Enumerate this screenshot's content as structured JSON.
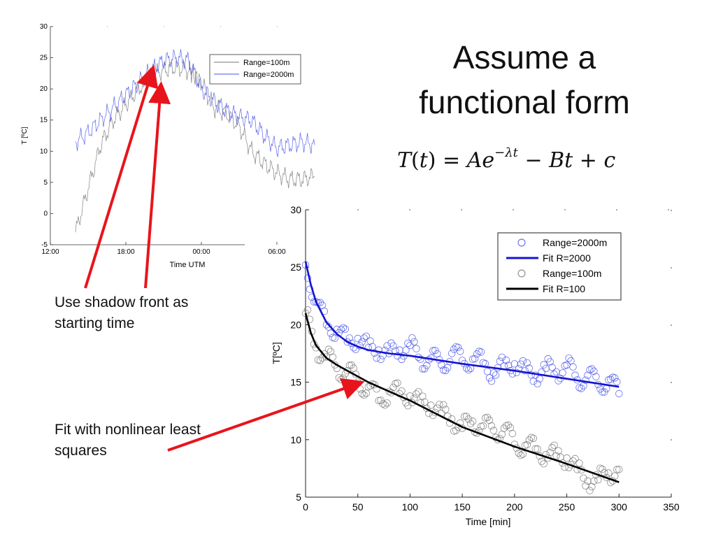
{
  "slide": {
    "title_line1": "Assume a",
    "title_line2": "functional form",
    "equation": {
      "T": "T",
      "t": "t",
      "A": "A",
      "e": "e",
      "exponent": "−λt",
      "minus": "−",
      "Bt": "Bt",
      "plus": "+",
      "c": "c"
    },
    "note_shadow_front": "Use shadow front as starting time",
    "note_fit": "Fit with nonlinear least squares"
  },
  "colors": {
    "range2000": "#4a55e8",
    "range100": "#777777",
    "fit2000": "#1414d2",
    "fit100": "#000000",
    "arrow": "#e8141b"
  },
  "chart_data": [
    {
      "type": "line",
      "title": "",
      "xlabel": "Time UTM",
      "ylabel": "T [ºC]",
      "x_tick_labels": [
        "12:00",
        "18:00",
        "00:00",
        "06:00"
      ],
      "y_ticks": [
        -5,
        0,
        5,
        10,
        15,
        20,
        25,
        30
      ],
      "ylim": [
        -5,
        30
      ],
      "legend_position": "top-right",
      "series": [
        {
          "name": "Range=100m",
          "color": "#777777",
          "x": [
            "14:00",
            "15:00",
            "16:00",
            "17:00",
            "18:00",
            "19:00",
            "20:00",
            "21:00",
            "22:00",
            "23:00",
            "23:30",
            "00:00",
            "01:00",
            "02:00",
            "03:00",
            "04:00",
            "05:00",
            "06:00",
            "07:00",
            "08:00",
            "09:00"
          ],
          "values": [
            -3,
            4,
            11,
            15,
            17.5,
            20,
            22,
            23,
            23.5,
            23,
            22,
            21,
            17,
            16,
            14,
            10,
            8,
            6.5,
            5.5,
            5.5,
            6
          ]
        },
        {
          "name": "Range=2000m",
          "color": "#4a55e8",
          "x": [
            "14:00",
            "15:00",
            "16:00",
            "17:00",
            "18:00",
            "19:00",
            "20:00",
            "21:00",
            "22:00",
            "23:00",
            "00:00",
            "01:00",
            "02:00",
            "03:00",
            "04:00",
            "05:00",
            "06:00",
            "07:00",
            "08:00",
            "09:00"
          ],
          "values": [
            11.5,
            13,
            15,
            17,
            19,
            21,
            23,
            24.5,
            25,
            24.5,
            20,
            18,
            16.5,
            15.5,
            15,
            12.5,
            10.5,
            11,
            11.5,
            11
          ]
        }
      ]
    },
    {
      "type": "scatter",
      "title": "",
      "xlabel": "Time [min]",
      "ylabel": "T[ºC]",
      "x_ticks": [
        0,
        50,
        100,
        150,
        200,
        250,
        300,
        350
      ],
      "y_ticks": [
        5,
        10,
        15,
        20,
        25,
        30
      ],
      "xlim": [
        0,
        350
      ],
      "ylim": [
        5,
        30
      ],
      "legend_position": "top-right",
      "series": [
        {
          "name": "Range=2000m",
          "kind": "markers",
          "color": "#4a55e8",
          "x": [
            0,
            10,
            20,
            30,
            40,
            50,
            60,
            70,
            80,
            90,
            100,
            110,
            120,
            130,
            140,
            150,
            160,
            170,
            180,
            190,
            200,
            210,
            220,
            230,
            240,
            250,
            260,
            270,
            280,
            290,
            300
          ],
          "values": [
            25.2,
            22,
            20,
            19.6,
            18.5,
            18.8,
            18,
            17.8,
            17.5,
            17.8,
            18.2,
            17,
            17.1,
            16.5,
            17.5,
            16.9,
            17,
            16.7,
            15.8,
            16.4,
            16.6,
            16,
            15.6,
            16.2,
            15.9,
            16.5,
            15.2,
            15.6,
            14.8,
            15.2,
            14
          ]
        },
        {
          "name": "Fit R=2000",
          "kind": "line",
          "color": "#1414d2",
          "x": [
            0,
            5,
            10,
            20,
            30,
            40,
            50,
            60,
            80,
            100,
            150,
            200,
            250,
            300
          ],
          "values": [
            25.5,
            23.5,
            22,
            20.2,
            19.2,
            18.5,
            18.1,
            17.8,
            17.5,
            17.3,
            16.6,
            16,
            15.3,
            14.6
          ]
        },
        {
          "name": "Range=100m",
          "kind": "markers",
          "color": "#777777",
          "x": [
            0,
            10,
            20,
            30,
            40,
            50,
            60,
            70,
            80,
            90,
            100,
            110,
            120,
            130,
            140,
            150,
            160,
            170,
            180,
            190,
            200,
            210,
            220,
            230,
            240,
            250,
            260,
            270,
            280,
            290,
            300
          ],
          "values": [
            21,
            18,
            17.2,
            16.2,
            16,
            15,
            14.6,
            13.4,
            14.2,
            14,
            13.8,
            13.2,
            13,
            12.3,
            11.8,
            11,
            11.6,
            11.2,
            10.8,
            11,
            9.6,
            9.5,
            9.2,
            8.7,
            8.6,
            8.4,
            7.4,
            6.4,
            6.5,
            7.1,
            7.4
          ]
        },
        {
          "name": "Fit R=100",
          "kind": "line",
          "color": "#000000",
          "x": [
            0,
            5,
            10,
            20,
            30,
            40,
            50,
            60,
            80,
            100,
            150,
            200,
            250,
            300
          ],
          "values": [
            21,
            19.3,
            18.2,
            17.1,
            16.5,
            16,
            15.5,
            15,
            14.2,
            13.4,
            11.1,
            9.4,
            7.9,
            6.3
          ]
        }
      ]
    }
  ]
}
